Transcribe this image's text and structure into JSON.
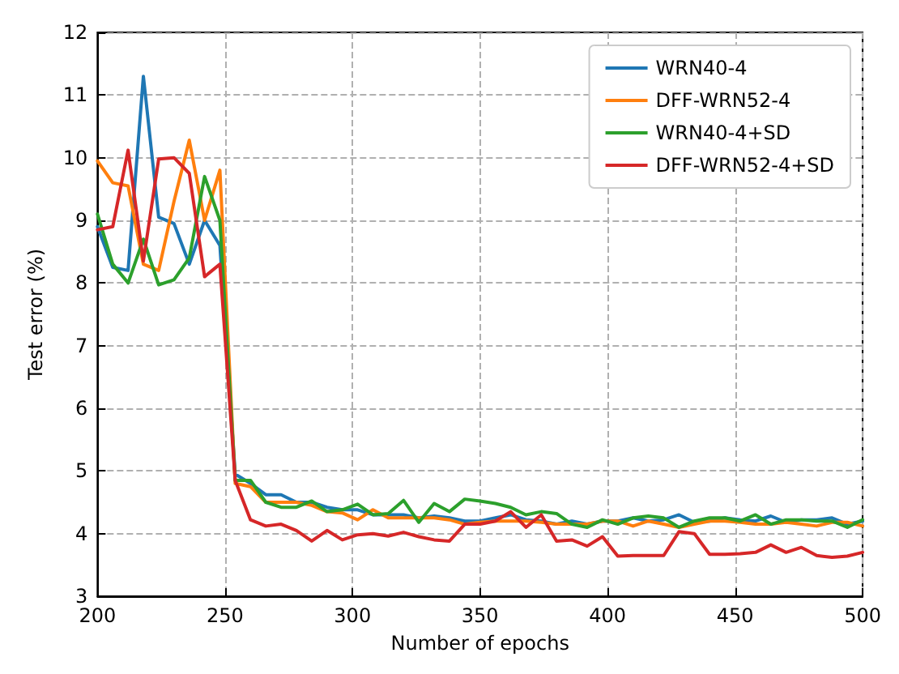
{
  "chart_data": {
    "type": "line",
    "xlabel": "Number of epochs",
    "ylabel": "Test error (%)",
    "x": [
      200,
      206,
      212,
      218,
      224,
      230,
      236,
      242,
      248,
      254,
      260,
      266,
      272,
      278,
      284,
      290,
      296,
      302,
      308,
      314,
      320,
      326,
      332,
      338,
      344,
      350,
      356,
      362,
      368,
      374,
      380,
      386,
      392,
      398,
      404,
      410,
      416,
      422,
      428,
      434,
      440,
      446,
      452,
      458,
      464,
      470,
      476,
      482,
      488,
      494,
      500
    ],
    "series": [
      {
        "name": "WRN40-4",
        "color": "#1f77b4",
        "values": [
          8.9,
          8.25,
          8.2,
          11.3,
          9.05,
          8.95,
          8.3,
          9.0,
          8.6,
          4.95,
          4.8,
          4.62,
          4.62,
          4.5,
          4.5,
          4.42,
          4.38,
          4.38,
          4.3,
          4.3,
          4.3,
          4.25,
          4.28,
          4.25,
          4.2,
          4.2,
          4.25,
          4.3,
          4.22,
          4.2,
          4.15,
          4.2,
          4.15,
          4.2,
          4.2,
          4.25,
          4.2,
          4.22,
          4.3,
          4.18,
          4.2,
          4.25,
          4.22,
          4.2,
          4.28,
          4.18,
          4.22,
          4.22,
          4.25,
          4.15,
          4.2
        ]
      },
      {
        "name": "DFF-WRN52-4",
        "color": "#ff7f0e",
        "values": [
          9.95,
          9.6,
          9.55,
          8.3,
          8.2,
          9.3,
          10.28,
          9.0,
          9.8,
          4.8,
          4.75,
          4.5,
          4.5,
          4.5,
          4.45,
          4.35,
          4.33,
          4.22,
          4.38,
          4.25,
          4.25,
          4.25,
          4.25,
          4.22,
          4.15,
          4.18,
          4.2,
          4.2,
          4.2,
          4.18,
          4.15,
          4.15,
          4.15,
          4.2,
          4.2,
          4.12,
          4.2,
          4.15,
          4.1,
          4.15,
          4.2,
          4.2,
          4.18,
          4.15,
          4.15,
          4.18,
          4.15,
          4.12,
          4.18,
          4.18,
          4.12
        ]
      },
      {
        "name": "WRN40-4+SD",
        "color": "#2ca02c",
        "values": [
          9.1,
          8.3,
          8.0,
          8.7,
          7.97,
          8.05,
          8.4,
          9.7,
          9.0,
          4.85,
          4.85,
          4.5,
          4.42,
          4.42,
          4.52,
          4.35,
          4.38,
          4.47,
          4.3,
          4.32,
          4.53,
          4.18,
          4.48,
          4.35,
          4.55,
          4.52,
          4.48,
          4.42,
          4.3,
          4.35,
          4.32,
          4.15,
          4.1,
          4.22,
          4.15,
          4.25,
          4.28,
          4.25,
          4.1,
          4.2,
          4.25,
          4.25,
          4.2,
          4.3,
          4.15,
          4.22,
          4.22,
          4.2,
          4.2,
          4.1,
          4.22
        ]
      },
      {
        "name": "DFF-WRN52-4+SD",
        "color": "#d62728",
        "values": [
          8.85,
          8.9,
          10.12,
          8.35,
          9.98,
          10.0,
          9.75,
          8.1,
          8.3,
          4.85,
          4.22,
          4.12,
          4.15,
          4.05,
          3.88,
          4.05,
          3.9,
          3.98,
          4.0,
          3.96,
          4.02,
          3.95,
          3.9,
          3.88,
          4.15,
          4.15,
          4.2,
          4.35,
          4.1,
          4.3,
          3.88,
          3.9,
          3.8,
          3.95,
          3.64,
          3.65,
          3.65,
          3.65,
          4.03,
          4.0,
          3.67,
          3.67,
          3.68,
          3.7,
          3.82,
          3.7,
          3.78,
          3.65,
          3.62,
          3.64,
          3.7
        ]
      }
    ],
    "xlim": [
      200,
      500
    ],
    "xticks": [
      200,
      250,
      300,
      350,
      400,
      450,
      500
    ],
    "ylim": [
      3,
      12
    ],
    "yticks": [
      3,
      4,
      5,
      6,
      7,
      8,
      9,
      10,
      11,
      12
    ],
    "grid": true,
    "legend": "top right",
    "marker": "none",
    "line_style": "solid"
  }
}
